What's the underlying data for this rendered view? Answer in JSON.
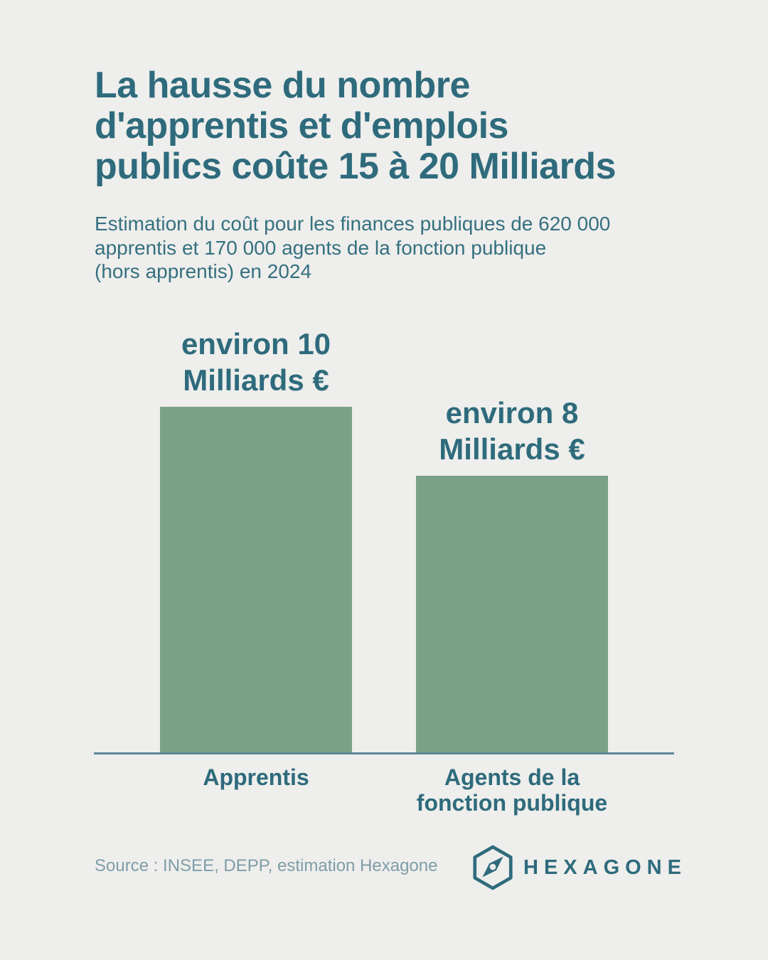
{
  "page": {
    "background_color": "#eeeeec",
    "accent_color": "#2e6b7c",
    "bar_color": "#7aa186",
    "axis_color": "#5d8a97",
    "source_color": "#7f9da8"
  },
  "header": {
    "title": "La hausse du nombre\nd'apprentis et d'emplois\npublics coûte 15 à 20 Milliards",
    "subtitle": "Estimation du coût pour les finances publiques de 620 000\napprentis et 170 000 agents de la fonction publique\n(hors apprentis) en 2024"
  },
  "chart_data": {
    "type": "bar",
    "categories": [
      "Apprentis",
      "Agents de la fonction publique"
    ],
    "category_display": [
      "Apprentis",
      "Agents de la\nfonction publique"
    ],
    "values": [
      10,
      8
    ],
    "value_labels": [
      "environ 10\nMilliards €",
      "environ 8\nMilliards €"
    ],
    "unit": "Milliards €",
    "ylim": [
      0,
      10
    ],
    "grid": false,
    "legend": false,
    "bar_color": "#7aa186"
  },
  "footer": {
    "source": "Source : INSEE, DEPP, estimation Hexagone",
    "brand": "HEXAGONE",
    "logo_icon": "hexagon-compass-icon"
  }
}
